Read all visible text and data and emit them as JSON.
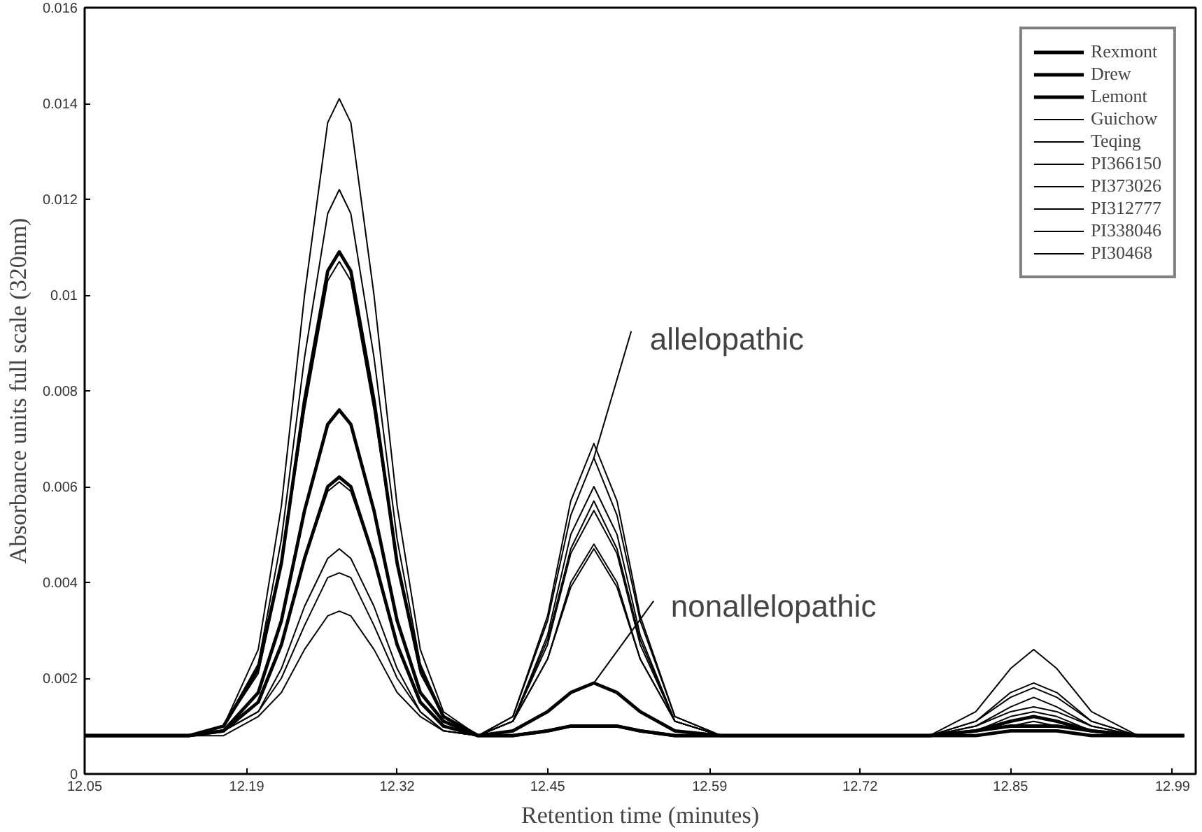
{
  "chart_data": {
    "type": "line",
    "xlabel": "Retention time (minutes)",
    "ylabel": "Absorbance units full scale (320nm)",
    "x": [
      12.05,
      12.1,
      12.14,
      12.17,
      12.2,
      12.22,
      12.24,
      12.26,
      12.27,
      12.28,
      12.3,
      12.32,
      12.34,
      12.36,
      12.39,
      12.42,
      12.45,
      12.47,
      12.49,
      12.51,
      12.53,
      12.56,
      12.6,
      12.66,
      12.72,
      12.78,
      12.82,
      12.85,
      12.87,
      12.89,
      12.92,
      12.96,
      13.0
    ],
    "series": [
      {
        "name": "Rexmont",
        "color": "#000000",
        "values": [
          0.0008,
          0.0008,
          0.0008,
          0.001,
          0.0022,
          0.0044,
          0.0078,
          0.0105,
          0.0109,
          0.0105,
          0.0078,
          0.0044,
          0.0022,
          0.0012,
          0.0008,
          0.0009,
          0.0013,
          0.0017,
          0.0019,
          0.0017,
          0.0013,
          0.0009,
          0.0008,
          0.0008,
          0.0008,
          0.0008,
          0.0009,
          0.0011,
          0.0012,
          0.0011,
          0.0009,
          0.0008,
          0.0008
        ]
      },
      {
        "name": "Drew",
        "color": "#000000",
        "values": [
          0.0008,
          0.0008,
          0.0008,
          0.0009,
          0.0017,
          0.0032,
          0.0055,
          0.0073,
          0.0076,
          0.0073,
          0.0055,
          0.0032,
          0.0017,
          0.0011,
          0.0008,
          0.0008,
          0.0009,
          0.001,
          0.001,
          0.001,
          0.0009,
          0.0008,
          0.0008,
          0.0008,
          0.0008,
          0.0008,
          0.0008,
          0.0009,
          0.0009,
          0.0009,
          0.0008,
          0.0008,
          0.0008
        ]
      },
      {
        "name": "Lemont",
        "color": "#000000",
        "values": [
          0.0008,
          0.0008,
          0.0008,
          0.0009,
          0.0015,
          0.0027,
          0.0045,
          0.006,
          0.0062,
          0.006,
          0.0045,
          0.0027,
          0.0015,
          0.001,
          0.0008,
          0.0008,
          0.0009,
          0.001,
          0.001,
          0.001,
          0.0009,
          0.0008,
          0.0008,
          0.0008,
          0.0008,
          0.0008,
          0.0009,
          0.001,
          0.001,
          0.001,
          0.0009,
          0.0008,
          0.0008
        ]
      },
      {
        "name": "Guichow",
        "color": "#000000",
        "values": [
          0.0008,
          0.0008,
          0.0008,
          0.001,
          0.0026,
          0.0056,
          0.01,
          0.0136,
          0.0141,
          0.0136,
          0.01,
          0.0056,
          0.0026,
          0.0013,
          0.0008,
          0.0012,
          0.0033,
          0.0057,
          0.0069,
          0.0057,
          0.0033,
          0.0012,
          0.0008,
          0.0008,
          0.0008,
          0.0008,
          0.0013,
          0.0022,
          0.0026,
          0.0022,
          0.0013,
          0.0008,
          0.0008
        ]
      },
      {
        "name": "Teqing",
        "color": "#000000",
        "values": [
          0.0008,
          0.0008,
          0.0008,
          0.001,
          0.0023,
          0.0049,
          0.0087,
          0.0117,
          0.0122,
          0.0117,
          0.0087,
          0.0049,
          0.0023,
          0.0012,
          0.0008,
          0.0012,
          0.0032,
          0.0054,
          0.0066,
          0.0054,
          0.0032,
          0.0012,
          0.0008,
          0.0008,
          0.0008,
          0.0008,
          0.0011,
          0.0017,
          0.0019,
          0.0017,
          0.0011,
          0.0008,
          0.0008
        ]
      },
      {
        "name": "PI366150",
        "color": "#000000",
        "values": [
          0.0008,
          0.0008,
          0.0008,
          0.001,
          0.0021,
          0.0044,
          0.0076,
          0.0103,
          0.0107,
          0.0103,
          0.0076,
          0.0044,
          0.0021,
          0.0012,
          0.0008,
          0.0011,
          0.0029,
          0.005,
          0.006,
          0.005,
          0.0029,
          0.0011,
          0.0008,
          0.0008,
          0.0008,
          0.0008,
          0.0011,
          0.0016,
          0.0018,
          0.0016,
          0.0011,
          0.0008,
          0.0008
        ]
      },
      {
        "name": "PI373026",
        "color": "#000000",
        "values": [
          0.0008,
          0.0008,
          0.0008,
          0.0009,
          0.0013,
          0.0022,
          0.0035,
          0.0045,
          0.0047,
          0.0045,
          0.0035,
          0.0022,
          0.0013,
          0.0009,
          0.0008,
          0.0011,
          0.0028,
          0.0047,
          0.0057,
          0.0047,
          0.0028,
          0.0011,
          0.0008,
          0.0008,
          0.0008,
          0.0008,
          0.001,
          0.0014,
          0.0016,
          0.0014,
          0.001,
          0.0008,
          0.0008
        ]
      },
      {
        "name": "PI312777",
        "color": "#000000",
        "values": [
          0.0008,
          0.0008,
          0.0008,
          0.0009,
          0.0013,
          0.002,
          0.0031,
          0.0041,
          0.0042,
          0.0041,
          0.0031,
          0.002,
          0.0013,
          0.0009,
          0.0008,
          0.0011,
          0.0027,
          0.0046,
          0.0055,
          0.0046,
          0.0027,
          0.0011,
          0.0008,
          0.0008,
          0.0008,
          0.0008,
          0.001,
          0.0013,
          0.0014,
          0.0013,
          0.001,
          0.0008,
          0.0008
        ]
      },
      {
        "name": "PI338046",
        "color": "#000000",
        "values": [
          0.0008,
          0.0008,
          0.0008,
          0.0008,
          0.0012,
          0.0017,
          0.0026,
          0.0033,
          0.0034,
          0.0033,
          0.0026,
          0.0017,
          0.0012,
          0.0009,
          0.0008,
          0.0011,
          0.0024,
          0.004,
          0.0048,
          0.004,
          0.0024,
          0.0011,
          0.0008,
          0.0008,
          0.0008,
          0.0008,
          0.0009,
          0.0012,
          0.0013,
          0.0012,
          0.0009,
          0.0008,
          0.0008
        ]
      },
      {
        "name": "PI30468",
        "color": "#000000",
        "values": [
          0.0008,
          0.0008,
          0.0008,
          0.0009,
          0.0015,
          0.0027,
          0.0045,
          0.0059,
          0.0061,
          0.0059,
          0.0045,
          0.0027,
          0.0015,
          0.001,
          0.0008,
          0.0011,
          0.0024,
          0.0039,
          0.0047,
          0.0039,
          0.0024,
          0.0011,
          0.0008,
          0.0008,
          0.0008,
          0.0008,
          0.0009,
          0.001,
          0.0011,
          0.001,
          0.0009,
          0.0008,
          0.0008
        ]
      }
    ],
    "xlim": [
      12.05,
      13.01
    ],
    "xticks": [
      12.05,
      12.19,
      12.32,
      12.45,
      12.59,
      12.72,
      12.85,
      12.99
    ],
    "ylim": [
      0,
      0.016
    ],
    "yticks": [
      0,
      0.002,
      0.004,
      0.006,
      0.008,
      0.01,
      0.012,
      0.014,
      0.016
    ],
    "annotations": [
      {
        "text": "allelopathic",
        "x": 12.49,
        "y": 0.0066
      },
      {
        "text": "nonallelopathic",
        "x": 12.49,
        "y": 0.0019
      }
    ],
    "grid": false,
    "legend": "top right",
    "marker": "none",
    "line_style": "solid"
  }
}
